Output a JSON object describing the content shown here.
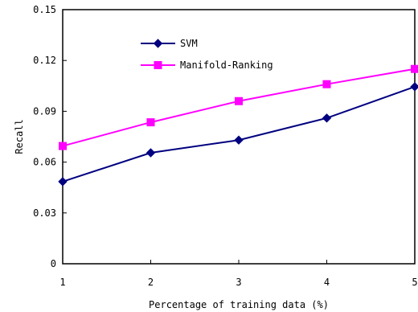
{
  "chart_data": {
    "type": "line",
    "x": [
      1,
      2,
      3,
      4,
      5
    ],
    "x_tick_labels": [
      "1",
      "2",
      "3",
      "4",
      "5"
    ],
    "y_tick_labels": [
      "0",
      "0.03",
      "0.06",
      "0.09",
      "0.12",
      "0.15"
    ],
    "y_ticks": [
      0,
      0.03,
      0.06,
      0.09,
      0.12,
      0.15
    ],
    "xlim": [
      1,
      5
    ],
    "ylim": [
      0,
      0.15
    ],
    "xlabel": "Percentage of training data (%)",
    "ylabel": "Recall",
    "grid": false,
    "legend_position": "top-center",
    "series": [
      {
        "name": "SVM",
        "values": [
          0.0485,
          0.0655,
          0.073,
          0.086,
          0.1045
        ],
        "color": "#000080",
        "marker": "diamond"
      },
      {
        "name": "Manifold-Ranking",
        "values": [
          0.0695,
          0.0835,
          0.096,
          0.106,
          0.115
        ],
        "color": "#FF00FF",
        "marker": "square"
      }
    ]
  }
}
